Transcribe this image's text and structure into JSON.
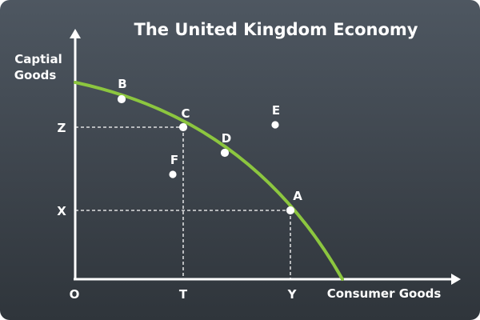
{
  "title": "The United Kingdom Economy",
  "y_axis_label_line1": "Captial",
  "y_axis_label_line2": "Goods",
  "x_axis_label": "Consumer Goods",
  "origin_label": "O",
  "y_ticks": {
    "z": "Z",
    "x": "X"
  },
  "x_ticks": {
    "t": "T",
    "y": "Y"
  },
  "points": [
    {
      "id": "B",
      "label": "B"
    },
    {
      "id": "C",
      "label": "C"
    },
    {
      "id": "D",
      "label": "D"
    },
    {
      "id": "A",
      "label": "A"
    },
    {
      "id": "E",
      "label": "E"
    },
    {
      "id": "F",
      "label": "F"
    }
  ],
  "colors": {
    "curve": "#8cc63f",
    "axes": "#ffffff",
    "text": "#ffffff",
    "background_top": "#4e5761",
    "background_bottom": "#2f353b"
  }
}
